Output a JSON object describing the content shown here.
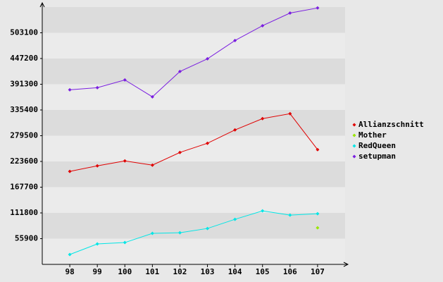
{
  "chart_data": {
    "type": "line",
    "x": [
      98,
      99,
      100,
      101,
      102,
      103,
      104,
      105,
      106,
      107
    ],
    "xlim": [
      97,
      108
    ],
    "xticks": [
      98,
      99,
      100,
      101,
      102,
      103,
      104,
      105,
      106,
      107
    ],
    "ylim": [
      0,
      559000
    ],
    "yticks": [
      55900,
      111800,
      167700,
      223600,
      279500,
      335400,
      391300,
      447200,
      503100
    ],
    "grid": true,
    "legend": "right",
    "series": [
      {
        "name": "Allianzschnitt",
        "color": "#e00000",
        "values": [
          201900,
          214100,
          224800,
          215600,
          243200,
          263100,
          292100,
          316600,
          327300,
          249300
        ]
      },
      {
        "name": "Mother",
        "color": "#99e600",
        "values": [
          null,
          null,
          null,
          null,
          null,
          null,
          null,
          null,
          null,
          79500
        ]
      },
      {
        "name": "RedQueen",
        "color": "#00e6e6",
        "values": [
          21400,
          44400,
          47400,
          67300,
          68800,
          78000,
          97900,
          116200,
          107100,
          110100
        ]
      },
      {
        "name": "setupman",
        "color": "#7a1ee0",
        "values": [
          379300,
          383900,
          400700,
          364000,
          419000,
          446600,
          486300,
          518500,
          546000,
          557000
        ]
      }
    ]
  }
}
